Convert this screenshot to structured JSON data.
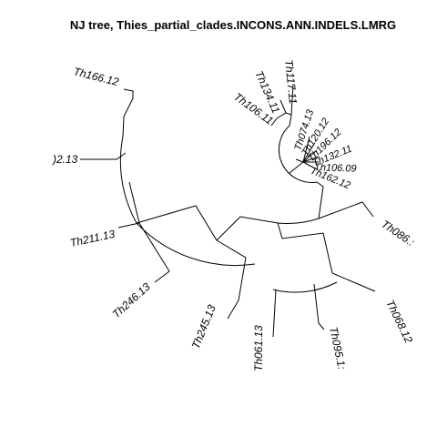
{
  "title": "NJ tree,  Thies_partial_clades.INCONS.ANN.INDELS.LMRG",
  "tips": {
    "th166": "Th166.12",
    "th002": ")2.13",
    "th211": "Th211.13",
    "th246": "Th246.13",
    "th245": "Th245.13",
    "th061": "Th061.13",
    "th095": "Th095.1:",
    "th068": "Th068.12",
    "th086": "Th086.:",
    "th117": "Th117.11",
    "th134": "Th134.11",
    "th106a": "Th106.11",
    "th074": "Th074.13",
    "th120": "Th120.12",
    "th196": "Th196.12",
    "th132": "Th132.11",
    "th106b": "Th106.09",
    "th162": "Th162.12"
  }
}
